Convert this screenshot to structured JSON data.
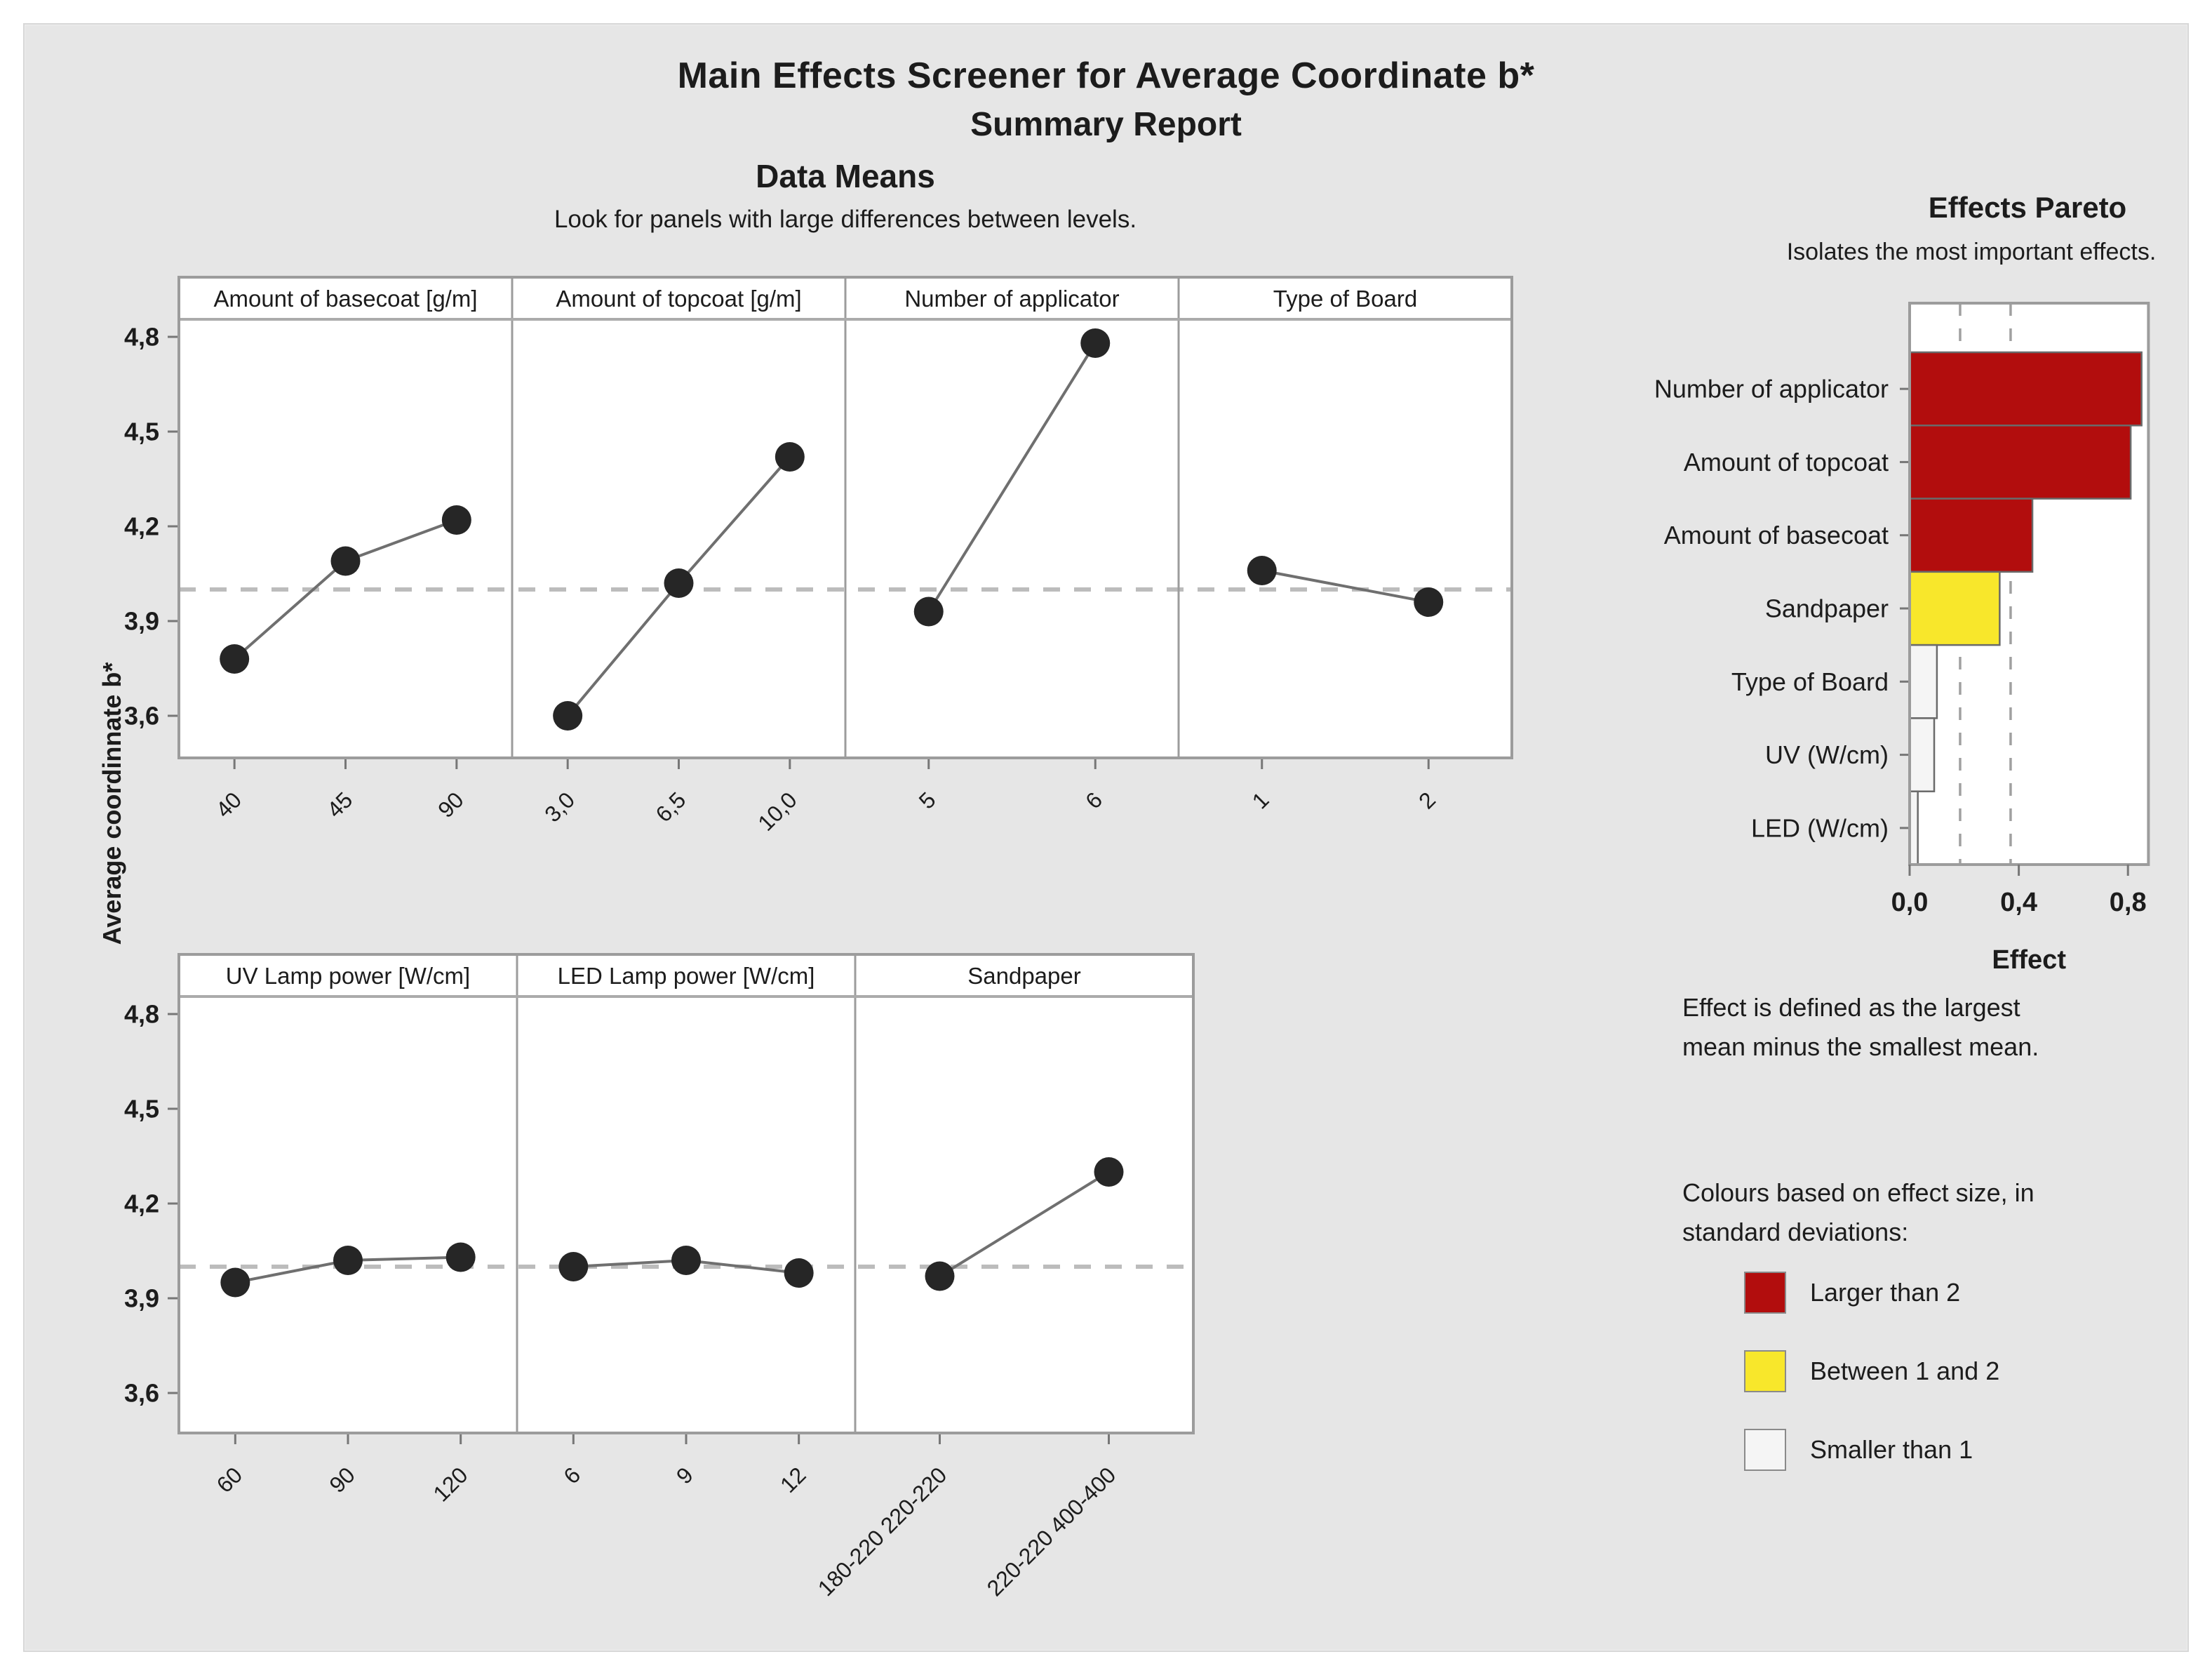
{
  "report": {
    "title": "Main Effects Screener for Average Coordinate b*",
    "subtitle": "Summary Report",
    "section_title": "Data Means",
    "section_hint": "Look for panels with large differences between levels."
  },
  "colors": {
    "red": "#b20d0d",
    "yellow": "#f8e72b",
    "white": "#f5f5f5",
    "marker": "#262626",
    "series_line": "#6f6f6f",
    "mean_dash": "#bcbcbc",
    "frame": "#9c9c9c"
  },
  "chart_data": [
    {
      "type": "line",
      "name": "main-effects-panels",
      "ylabel": "Average coordinnate b*",
      "ylim": [
        3.45,
        4.95
      ],
      "yticks": [
        "4,8",
        "4,5",
        "4,2",
        "3,9",
        "3,6"
      ],
      "ytick_values": [
        4.8,
        4.5,
        4.2,
        3.9,
        3.6
      ],
      "mean_line": 4.0,
      "grid": false,
      "rows": [
        {
          "panels": [
            {
              "title": "Amount of basecoat [g/m]",
              "ticks": [
                "40",
                "45",
                "90"
              ],
              "values": [
                3.78,
                4.09,
                4.22
              ]
            },
            {
              "title": "Amount of topcoat [g/m]",
              "ticks": [
                "3,0",
                "6,5",
                "10,0"
              ],
              "values": [
                3.6,
                4.02,
                4.42
              ]
            },
            {
              "title": "Number of applicator",
              "ticks": [
                "5",
                "6"
              ],
              "values": [
                3.93,
                4.78
              ]
            },
            {
              "title": "Type of Board",
              "ticks": [
                "1",
                "2"
              ],
              "values": [
                4.06,
                3.96
              ]
            }
          ]
        },
        {
          "panels": [
            {
              "title": "UV Lamp power [W/cm]",
              "ticks": [
                "60",
                "90",
                "120"
              ],
              "values": [
                3.95,
                4.02,
                4.03
              ]
            },
            {
              "title": "LED Lamp power [W/cm]",
              "ticks": [
                "6",
                "9",
                "12"
              ],
              "values": [
                4.0,
                4.02,
                3.98
              ]
            },
            {
              "title": "Sandpaper",
              "ticks": [
                "180-220 220-220",
                "220-220 400-400"
              ],
              "values": [
                3.97,
                4.3
              ]
            }
          ]
        }
      ]
    },
    {
      "type": "bar",
      "name": "effects-pareto",
      "title": "Effects Pareto",
      "subtitle": "Isolates the most important effects.",
      "orientation": "horizontal",
      "xlabel": "Effect",
      "xticks": [
        "0,0",
        "0,4",
        "0,8"
      ],
      "xtick_values": [
        0.0,
        0.4,
        0.8
      ],
      "xlim": [
        0,
        0.875
      ],
      "categories": [
        "Number of applicator",
        "Amount of topcoat",
        "Amount of basecoat",
        "Sandpaper",
        "Type of Board",
        "UV (W/cm)",
        "LED (W/cm)"
      ],
      "values": [
        0.85,
        0.81,
        0.45,
        0.33,
        0.1,
        0.09,
        0.03
      ],
      "bar_colors": [
        "red",
        "red",
        "red",
        "yellow",
        "white",
        "white",
        "white"
      ],
      "reference_lines": [
        0.185,
        0.37
      ],
      "legend_position": "below-right"
    }
  ],
  "notes": {
    "effect_definition": [
      "Effect is defined as the largest",
      "mean minus the smallest mean."
    ]
  },
  "legend": {
    "intro": [
      "Colours based on effect size, in",
      "standard deviations:"
    ],
    "items": [
      {
        "color": "red",
        "label": "Larger than 2"
      },
      {
        "color": "yellow",
        "label": "Between 1 and 2"
      },
      {
        "color": "white",
        "label": "Smaller than 1"
      }
    ]
  }
}
